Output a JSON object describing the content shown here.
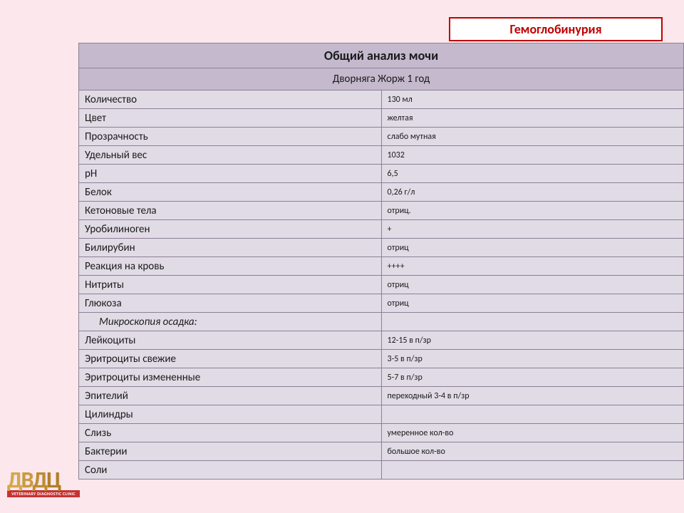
{
  "style": {
    "page_bg": "#fce8ec",
    "header_bg": "#c5b9cd",
    "row_bg": "#e1dbe6",
    "border_color": "#8c8094",
    "text_color": "#1a1a1a",
    "badge_border": "#c00000",
    "badge_text_color": "#c00000",
    "title_fontsize": "18px",
    "subtitle_fontsize": "15px",
    "logo_sub_bg": "#c83232",
    "logo_sub_color": "#ffffff"
  },
  "badge": {
    "text": "Гемоглобинурия"
  },
  "table": {
    "title": "Общий анализ мочи",
    "subtitle": "Дворняга  Жорж   1 год",
    "rows": [
      {
        "label": "Количество",
        "value": "130 мл"
      },
      {
        "label": "Цвет",
        "value": "желтая"
      },
      {
        "label": "Прозрачность",
        "value": "слабо мутная"
      },
      {
        "label": "Удельный вес",
        "value": "1032"
      },
      {
        "label": "рН",
        "value": "6,5"
      },
      {
        "label": "Белок",
        "value": "0,26 г/л"
      },
      {
        "label": "Кетоновые тела",
        "value": "отриц."
      },
      {
        "label": "Уробилиноген",
        "value": "+"
      },
      {
        "label": "Билирубин",
        "value": "отриц"
      },
      {
        "label": "Реакция на кровь",
        "value": "++++"
      },
      {
        "label": "Нитриты",
        "value": "отриц"
      },
      {
        "label": "Глюкоза",
        "value": "отриц"
      },
      {
        "label": "Микроскопия осадка:",
        "value": "",
        "section": true
      },
      {
        "label": "Лейкоциты",
        "value": "12-15 в п/зр"
      },
      {
        "label": "Эритроциты свежие",
        "value": "3-5 в п/зр"
      },
      {
        "label": "Эритроциты измененные",
        "value": "5-7 в п/зр"
      },
      {
        "label": "Эпителий",
        "value": "переходный 3-4 в п/зр"
      },
      {
        "label": "Цилиндры",
        "value": ""
      },
      {
        "label": "Слизь",
        "value": "умеренное кол-во"
      },
      {
        "label": "Бактерии",
        "value": "большое кол-во"
      },
      {
        "label": "Соли",
        "value": ""
      }
    ]
  },
  "logo": {
    "letters": "ДВДЦ",
    "sub": "VETERINARY DIAGNOSTIC CLINIC"
  }
}
